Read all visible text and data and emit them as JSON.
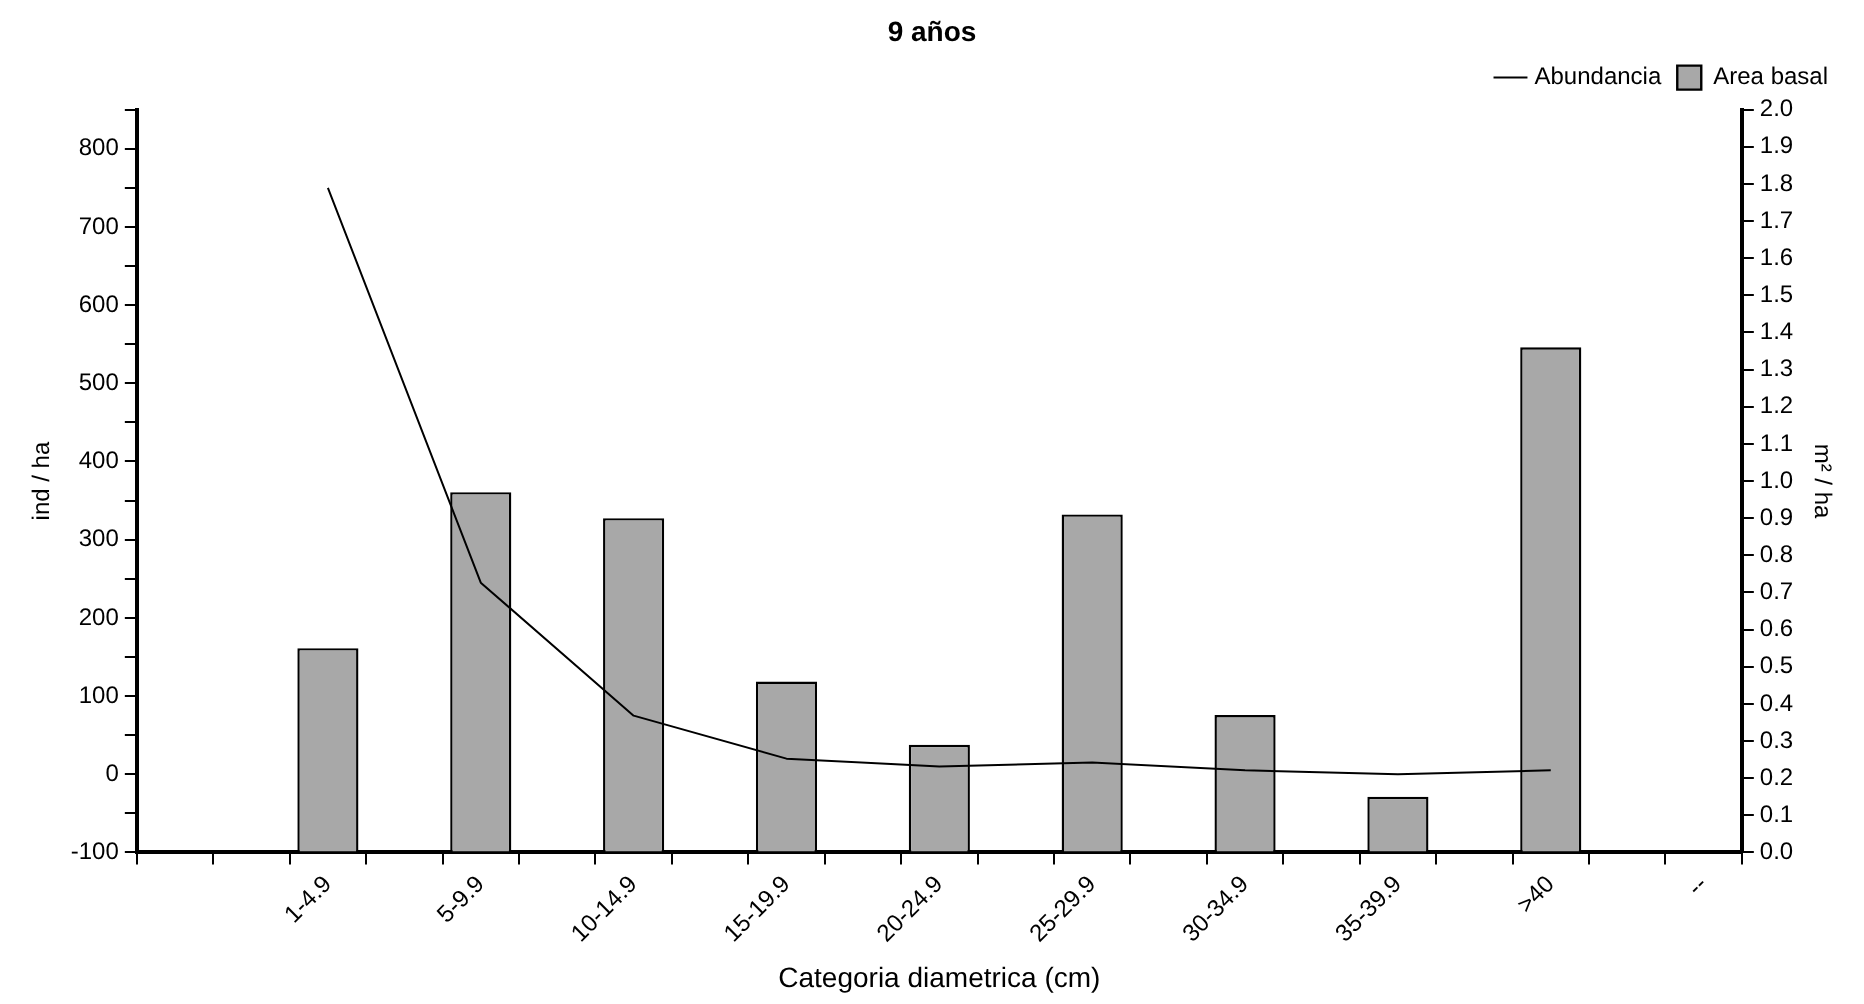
{
  "chart_data": {
    "type": "bar",
    "title": "9 años",
    "xlabel": "Categoria diametrica (cm)",
    "ylabel": "ind / ha",
    "y2label": "m² / ha",
    "categories": [
      "1-4.9",
      "5-9.9",
      "10-14.9",
      "15-19.9",
      "20-24.9",
      "25-29.9",
      "30-34.9",
      "35-39.9",
      ">40",
      "--"
    ],
    "series": [
      {
        "name": "Abundancia",
        "type": "line",
        "color": "#000000",
        "values": [
          750,
          245,
          75,
          20,
          10,
          15,
          5,
          0,
          5,
          null
        ]
      },
      {
        "name": "Area basal",
        "axis": "y2",
        "color": "#a8a8a8",
        "values": [
          0.55,
          0.97,
          0.9,
          0.46,
          0.29,
          0.91,
          0.37,
          0.15,
          1.36,
          null
        ]
      }
    ],
    "ylim": [
      -100,
      850
    ],
    "yticks": [
      -100,
      {
        "value": -50,
        "label": null
      },
      0,
      {
        "value": 50,
        "label": null
      },
      100,
      {
        "value": 150,
        "label": null
      },
      200,
      {
        "value": 250,
        "label": null
      },
      300,
      {
        "value": 350,
        "label": null
      },
      400,
      {
        "value": 450,
        "label": null
      },
      500,
      {
        "value": 550,
        "label": null
      },
      600,
      {
        "value": 650,
        "label": null
      },
      700,
      {
        "value": 750,
        "label": null
      },
      800,
      {
        "value": 850,
        "label": null
      }
    ],
    "y2lim": [
      0,
      2
    ],
    "y2ticks": [
      {
        "value": 0,
        "label": "0.0"
      },
      {
        "value": 0.1,
        "label": "0.1"
      },
      {
        "value": 0.2,
        "label": "0.2"
      },
      {
        "value": 0.3,
        "label": "0.3"
      },
      {
        "value": 0.4,
        "label": "0.4"
      },
      {
        "value": 0.5,
        "label": "0.5"
      },
      {
        "value": 0.6,
        "label": "0.6"
      },
      {
        "value": 0.7,
        "label": "0.7"
      },
      {
        "value": 0.8,
        "label": "0.8"
      },
      {
        "value": 0.9,
        "label": "0.9"
      },
      {
        "value": 1,
        "label": "1.0"
      },
      {
        "value": 1.1,
        "label": "1.1"
      },
      {
        "value": 1.2,
        "label": "1.2"
      },
      {
        "value": 1.3,
        "label": "1.3"
      },
      {
        "value": 1.4,
        "label": "1.4"
      },
      {
        "value": 1.5,
        "label": "1.5"
      },
      {
        "value": 1.6,
        "label": "1.6"
      },
      {
        "value": 1.7,
        "label": "1.7"
      },
      {
        "value": 1.8,
        "label": "1.8"
      },
      {
        "value": 1.9,
        "label": "1.9"
      },
      {
        "value": 2,
        "label": "2.0"
      }
    ],
    "legend": "top right",
    "line_style": "solid",
    "marker": "none"
  }
}
